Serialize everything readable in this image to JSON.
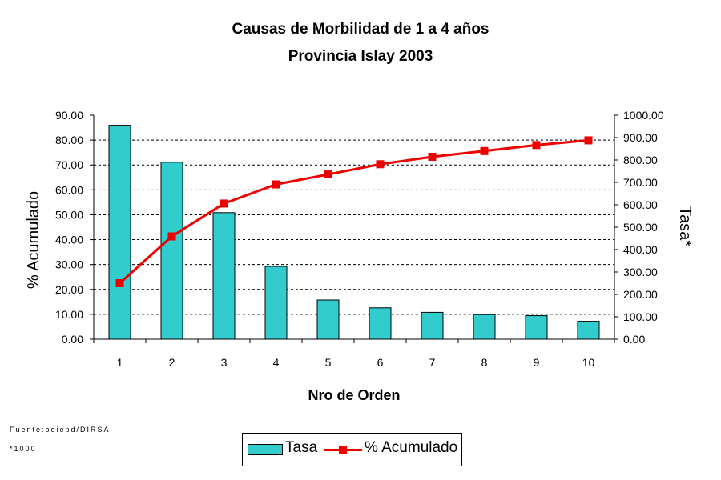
{
  "title_line1": "Causas de Morbilidad de 1 a 4  años",
  "title_line2": "Provincia Islay 2003",
  "footnote_source": "Fuente:oeiepd/DIRSA",
  "footnote_unit": "*1000",
  "legend": {
    "series1": "Tasa",
    "series2": "% Acumulado"
  },
  "colors": {
    "bars": "#33cccc",
    "line": "#ee0000",
    "grid": "#000000"
  },
  "chart_data": {
    "type": "bar",
    "title": "Causas de Morbilidad de 1 a 4  años Provincia Islay 2003",
    "xlabel": "Nro de Orden",
    "ylabel_left": "% Acumulado",
    "ylabel_right": "Tasa*",
    "categories": [
      "1",
      "2",
      "3",
      "4",
      "5",
      "6",
      "7",
      "8",
      "9",
      "10"
    ],
    "left_axis": {
      "ylim": [
        0,
        90
      ],
      "ticks": [
        "0.00",
        "10.00",
        "20.00",
        "30.00",
        "40.00",
        "50.00",
        "60.00",
        "70.00",
        "80.00",
        "90.00"
      ]
    },
    "right_axis": {
      "ylim": [
        0,
        1000
      ],
      "ticks": [
        "0.00",
        "100.00",
        "200.00",
        "300.00",
        "400.00",
        "500.00",
        "600.00",
        "700.00",
        "800.00",
        "900.00",
        "1000.00"
      ]
    },
    "grid": true,
    "legend_position": "bottom",
    "series": [
      {
        "name": "Tasa",
        "type": "bar",
        "axis": "right",
        "values": [
          955,
          790,
          565,
          325,
          175,
          140,
          120,
          110,
          105,
          80
        ]
      },
      {
        "name": "% Acumulado",
        "type": "line",
        "axis": "left",
        "values": [
          22.5,
          41.3,
          54.5,
          62.2,
          66.2,
          70.3,
          73.3,
          75.6,
          78.0,
          79.9
        ]
      }
    ]
  }
}
